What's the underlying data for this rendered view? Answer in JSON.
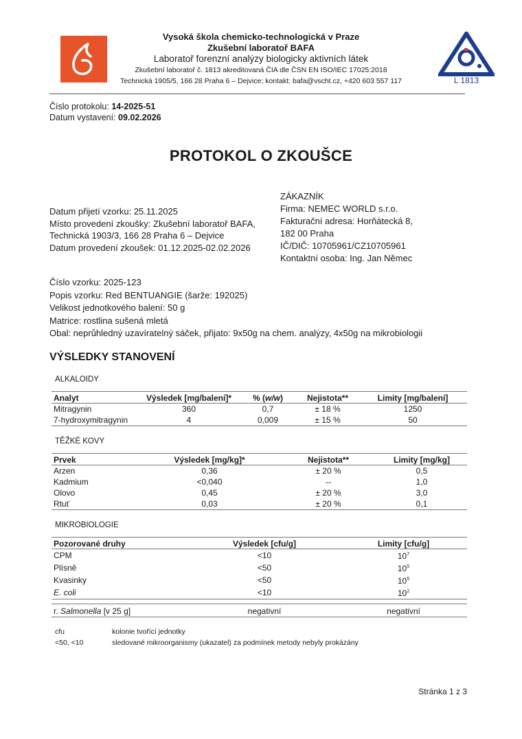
{
  "header": {
    "institution": "Vysoká škola chemicko-technologická v Praze",
    "lab": "Zkušební laboratoř BAFA",
    "subtitle": "Laboratoř forenzní analýzy biologicky aktivních látek",
    "accreditation": "Zkušební laboratoř č. 1813 akreditovaná ČIA dle ČSN EN ISO/IEC 17025:2018",
    "contact": "Technická 1905/5, 166 28 Praha 6 – Dejvice; kontakt: bafa@vscht.cz, +420 603 557 117",
    "logo_left_color": "#e8542a",
    "logo_right_color": "#1e3c8c",
    "logo_right_text": "L 1813"
  },
  "protocol": {
    "number_label": "Číslo protokolu: ",
    "number": "14-2025-51",
    "date_label": "Datum vystavení: ",
    "date": "09.02.2026"
  },
  "title": "PROTOKOL O ZKOUŠCE",
  "info_left": [
    "Datum přijetí vzorku: 25.11.2025",
    "Místo provedení zkoušky: Zkušební laboratoř BAFA,",
    "Technická 1903/3, 166 28 Praha 6 – Dejvice",
    "Datum provedení zkoušek: 01.12.2025-02.02.2026"
  ],
  "customer": {
    "heading": "ZÁKAZNÍK",
    "lines": [
      "Firma: NEMEC WORLD s.r.o.",
      "Fakturační adresa: Horňátecká 8,",
      "182 00 Praha",
      "IČ/DIČ: 10705961/CZ10705961",
      "Kontaktní osoba: Ing. Jan Němec"
    ]
  },
  "sample": [
    "Číslo vzorku: 2025-123",
    "Popis vzorku: Red BENTUANGIE (šarže: 192025)",
    "Velikost jednotkového balení: 50 g",
    "Matrice: rostlina sušená mletá",
    "Obal: neprůhledný uzavíratelný sáček, přijato: 9x50g na chem. analýzy, 4x50g na mikrobiologii"
  ],
  "results_heading": "VÝSLEDKY STANOVENÍ",
  "alkaloids": {
    "caption": "ALKALOIDY",
    "headers": [
      "Analyt",
      "Výsledek [mg/balení]*",
      "% (w/w)",
      "Nejistota**",
      "Limity [mg/balení]"
    ],
    "rows": [
      [
        "Mitragynin",
        "360",
        "0,7",
        "± 18 %",
        "1250"
      ],
      [
        "7-hydroxymitragynin",
        "4",
        "0,009",
        "± 15 %",
        "50"
      ]
    ]
  },
  "metals": {
    "caption": "TĚŽKÉ KOVY",
    "headers": [
      "Prvek",
      "Výsledek [mg/kg]*",
      "Nejistota**",
      "Limity [mg/kg]"
    ],
    "rows": [
      [
        "Arzen",
        "0,36",
        "± 20 %",
        "0,5"
      ],
      [
        "Kadmium",
        "<0,040",
        "--",
        "1,0"
      ],
      [
        "Olovo",
        "0,45",
        "± 20 %",
        "3,0"
      ],
      [
        "Rtuť",
        "0,03",
        "± 20 %",
        "0,1"
      ]
    ]
  },
  "micro": {
    "caption": "MIKROBIOLOGIE",
    "headers": [
      "Pozorované druhy",
      "Výsledek [cfu/g]",
      "Limity [cfu/g]"
    ],
    "rows": [
      [
        "CPM",
        "<10",
        "10",
        "7"
      ],
      [
        "Plísně",
        "<50",
        "10",
        "5"
      ],
      [
        "Kvasinky",
        "<50",
        "10",
        "5"
      ],
      [
        "E. coli",
        "<10",
        "10",
        "2"
      ]
    ],
    "salmonella": {
      "prefix": "r. ",
      "genus": "Salmonella",
      "suffix": " [v 25 g]",
      "result": "negativní",
      "limit": "negativní"
    }
  },
  "footnotes": [
    {
      "term": "cfu",
      "def": "kolonie tvořící jednotky"
    },
    {
      "term": "<50, <10",
      "def": "sledované mikroorganismy (ukazatel) za podmínek metody nebyly prokázány"
    }
  ],
  "page": "Stránka 1 z 3"
}
